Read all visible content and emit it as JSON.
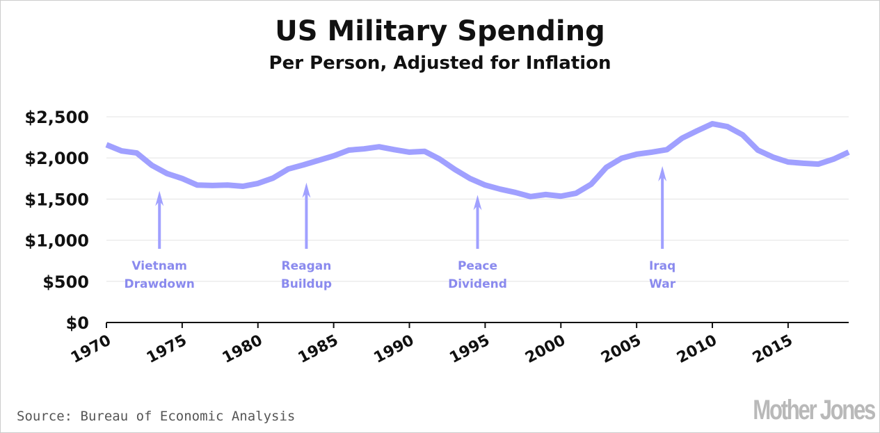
{
  "chart_data": {
    "type": "line",
    "title": "US Military Spending",
    "subtitle": "Per Person, Adjusted for Inflation",
    "xlabel": "",
    "ylabel": "",
    "xlim": [
      1970,
      2019
    ],
    "ylim": [
      0,
      2500
    ],
    "grid": true,
    "line_color": "#a0a0ff",
    "annotation_color": "#8a8aee",
    "y_ticks": [
      {
        "value": 0,
        "label": "$0"
      },
      {
        "value": 500,
        "label": "$500"
      },
      {
        "value": 1000,
        "label": "$1,000"
      },
      {
        "value": 1500,
        "label": "$1,500"
      },
      {
        "value": 2000,
        "label": "$2,000"
      },
      {
        "value": 2500,
        "label": "$2,500"
      }
    ],
    "x_ticks": [
      {
        "value": 1970,
        "label": "1970"
      },
      {
        "value": 1975,
        "label": "1975"
      },
      {
        "value": 1980,
        "label": "1980"
      },
      {
        "value": 1985,
        "label": "1985"
      },
      {
        "value": 1990,
        "label": "1990"
      },
      {
        "value": 1995,
        "label": "1995"
      },
      {
        "value": 2000,
        "label": "2000"
      },
      {
        "value": 2005,
        "label": "2005"
      },
      {
        "value": 2010,
        "label": "2010"
      },
      {
        "value": 2015,
        "label": "2015"
      }
    ],
    "series": [
      {
        "name": "Military spending per person",
        "x": [
          1970,
          1971,
          1972,
          1973,
          1974,
          1975,
          1976,
          1977,
          1978,
          1979,
          1980,
          1981,
          1982,
          1983,
          1984,
          1985,
          1986,
          1987,
          1988,
          1989,
          1990,
          1991,
          1992,
          1993,
          1994,
          1995,
          1996,
          1997,
          1998,
          1999,
          2000,
          2001,
          2002,
          2003,
          2004,
          2005,
          2006,
          2007,
          2008,
          2009,
          2010,
          2011,
          2012,
          2013,
          2014,
          2015,
          2016,
          2017,
          2018,
          2019
        ],
        "values": [
          2160,
          2085,
          2060,
          1910,
          1810,
          1750,
          1670,
          1665,
          1670,
          1655,
          1690,
          1755,
          1865,
          1915,
          1970,
          2025,
          2095,
          2110,
          2135,
          2100,
          2070,
          2080,
          1985,
          1860,
          1750,
          1670,
          1620,
          1580,
          1530,
          1555,
          1535,
          1570,
          1680,
          1885,
          1995,
          2045,
          2070,
          2100,
          2240,
          2330,
          2415,
          2380,
          2280,
          2095,
          2010,
          1950,
          1935,
          1925,
          1985,
          2070
        ]
      }
    ],
    "annotations": [
      {
        "lines": [
          "Vietnam",
          "Drawdown"
        ],
        "x": 1973.5,
        "arrow_top": 1600
      },
      {
        "lines": [
          "Reagan",
          "Buildup"
        ],
        "x": 1983.2,
        "arrow_top": 1700
      },
      {
        "lines": [
          "Peace",
          "Dividend"
        ],
        "x": 1994.5,
        "arrow_top": 1550
      },
      {
        "lines": [
          "Iraq",
          "War"
        ],
        "x": 2006.7,
        "arrow_top": 1900
      }
    ]
  },
  "source": "Source: Bureau of Economic Analysis",
  "logo": "Mother Jones"
}
